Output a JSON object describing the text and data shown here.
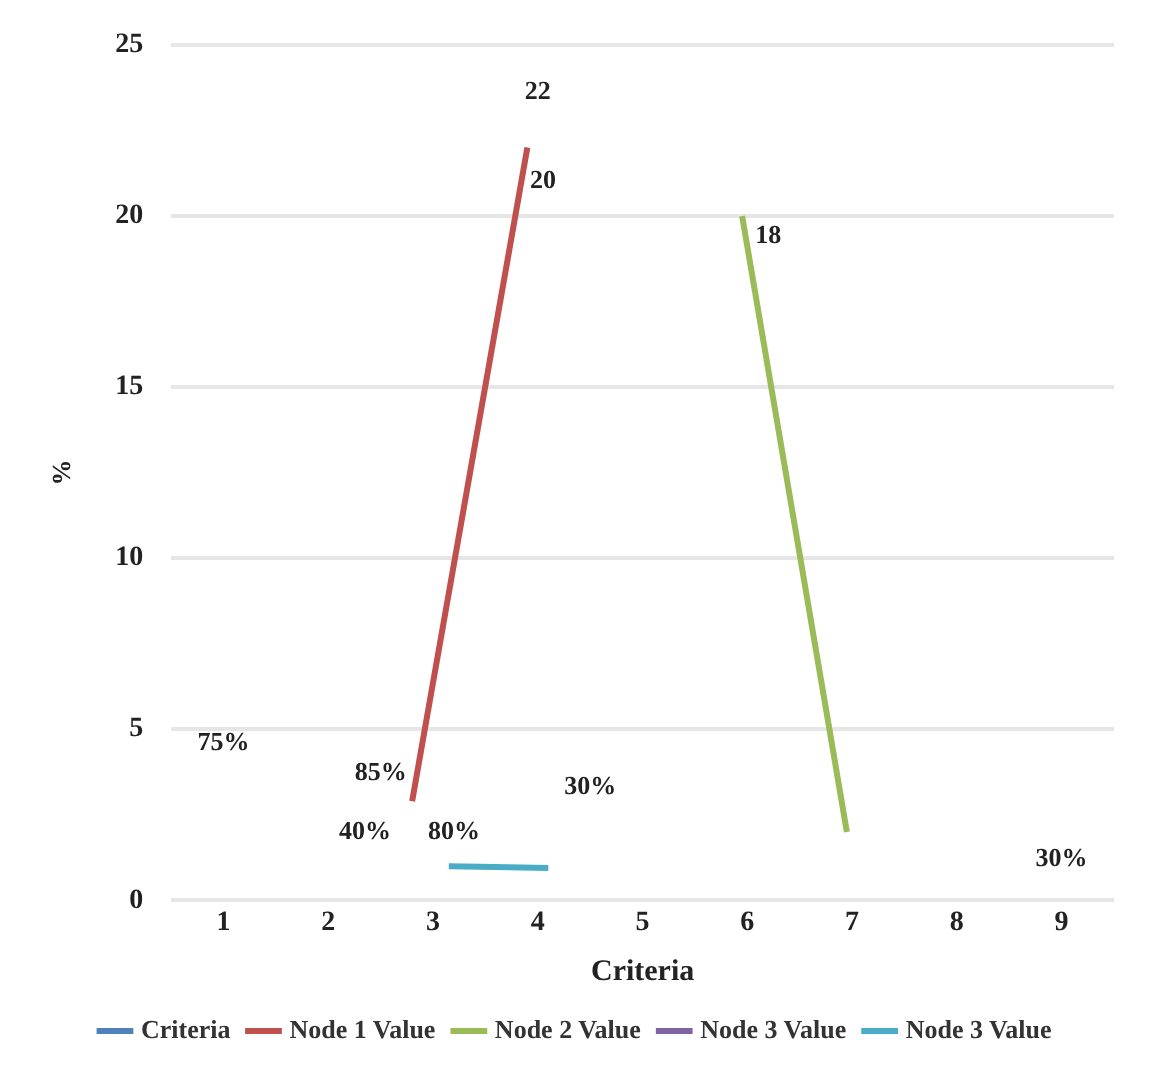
{
  "chart_data": {
    "type": "line",
    "xlabel": "Criteria",
    "ylabel": "%",
    "xlim": [
      0.5,
      9.5
    ],
    "xticks": [
      1,
      2,
      3,
      4,
      5,
      6,
      7,
      8,
      9
    ],
    "ylim": [
      0,
      25
    ],
    "yticks": [
      0,
      5,
      10,
      15,
      20,
      25
    ],
    "grid": "y",
    "legend": "bottom",
    "marker": "none",
    "line_style": "solid",
    "series": [
      {
        "name": "Criteria",
        "color": "#4f81bd"
      },
      {
        "name": "Node 1 Value",
        "color": "#c0504d",
        "x": [
          2.8,
          3.9
        ],
        "values": [
          2.9,
          22
        ]
      },
      {
        "name": "Node 2 Value",
        "color": "#9bbb59",
        "x": [
          5.95,
          6.95
        ],
        "values": [
          20,
          2
        ]
      },
      {
        "name": "Node 3 Value",
        "color": "#8064a2"
      },
      {
        "name": "Node 3 Value",
        "color": "#4bacc6",
        "x": [
          3.15,
          4.1
        ],
        "values": [
          1,
          0.95
        ]
      }
    ],
    "annotations": [
      "22",
      "20",
      "18",
      "75%",
      "85%",
      "40%",
      "80%",
      "30%",
      "30%"
    ]
  }
}
